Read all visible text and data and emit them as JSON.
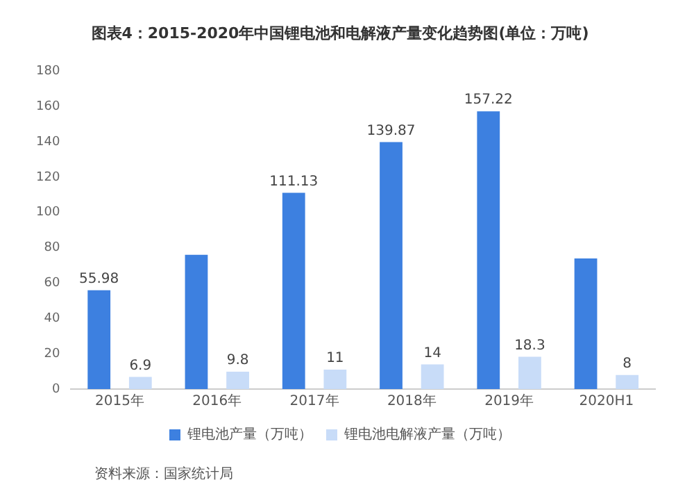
{
  "chart_data": {
    "type": "bar",
    "title": "图表4：2015-2020年中国锂电池和电解液产量变化趋势图(单位：万吨)",
    "categories": [
      "2015年",
      "2016年",
      "2017年",
      "2018年",
      "2019年",
      "2020H1"
    ],
    "series": [
      {
        "name": "锂电池产量（万吨）",
        "color": "#3d80e0",
        "values": [
          55.98,
          76,
          111.13,
          139.87,
          157.22,
          74
        ],
        "value_labels": [
          "55.98",
          null,
          "111.13",
          "139.87",
          "157.22",
          null
        ]
      },
      {
        "name": "锂电池电解液产量（万吨）",
        "color": "#c8dcf8",
        "values": [
          6.9,
          9.8,
          11,
          14,
          18.3,
          8
        ],
        "value_labels": [
          "6.9",
          "9.8",
          "11",
          "14",
          "18.3",
          "8"
        ]
      }
    ],
    "ylim": [
      0,
      180
    ],
    "yticks": [
      0,
      20,
      40,
      60,
      80,
      100,
      120,
      140,
      160,
      180
    ],
    "grid": false,
    "legend": "bottom",
    "annotations": [
      "资料来源：国家统计局"
    ]
  }
}
